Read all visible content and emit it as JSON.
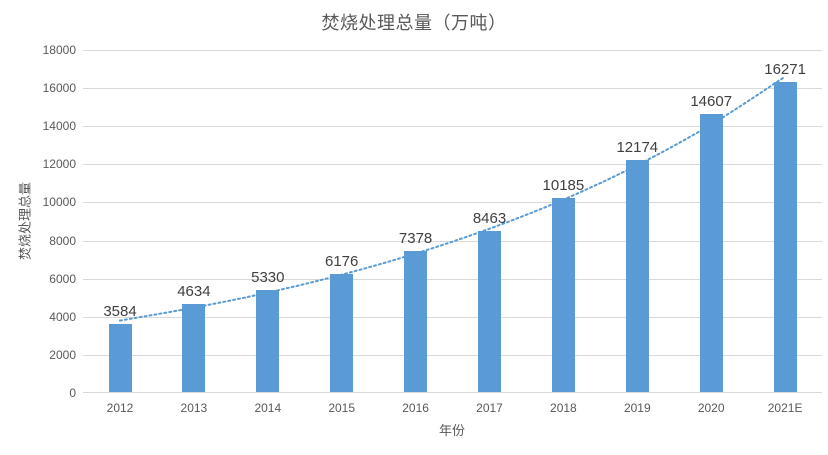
{
  "chart_data": {
    "type": "bar",
    "title": "焚烧处理总量（万吨）",
    "xlabel": "年份",
    "ylabel": "焚烧处理总量",
    "categories": [
      "2012",
      "2013",
      "2014",
      "2015",
      "2016",
      "2017",
      "2018",
      "2019",
      "2020",
      "2021E"
    ],
    "values": [
      3584,
      4634,
      5330,
      6176,
      7378,
      8463,
      10185,
      12174,
      14607,
      16271
    ],
    "data_labels": [
      "3584",
      "4634",
      "5330",
      "6176",
      "7378",
      "8463",
      "10185",
      "12174",
      "14607",
      "16271"
    ],
    "trendline": {
      "style": "dotted",
      "values": [
        3800,
        4480,
        5270,
        6210,
        7320,
        8620,
        10150,
        11960,
        14090,
        16600
      ]
    },
    "yticks": [
      0,
      2000,
      4000,
      6000,
      8000,
      10000,
      12000,
      14000,
      16000,
      18000
    ],
    "ylim": [
      0,
      18000
    ],
    "grid": true,
    "legend": "none",
    "colors": {
      "bar": "#5b9bd5",
      "trendline": "#5b9bd5",
      "gridline": "#d9d9d9",
      "axis_text": "#595959",
      "data_label": "#404040",
      "title": "#595959"
    }
  }
}
